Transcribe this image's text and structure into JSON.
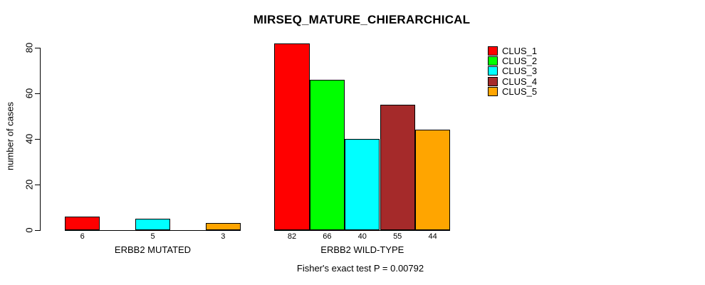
{
  "title": "MIRSEQ_MATURE_CHIERARCHICAL",
  "chart_data": {
    "type": "bar",
    "title": "MIRSEQ_MATURE_CHIERARCHICAL",
    "xlabel": "",
    "ylabel": "number of cases",
    "ylim": [
      0,
      80
    ],
    "yticks": [
      0,
      20,
      40,
      60,
      80
    ],
    "grid": false,
    "legend_position": "top-right",
    "legend": [
      {
        "label": "CLUS_1",
        "color": "#FF0000"
      },
      {
        "label": "CLUS_2",
        "color": "#00FF00"
      },
      {
        "label": "CLUS_3",
        "color": "#00FFFF"
      },
      {
        "label": "CLUS_4",
        "color": "#A52A2A"
      },
      {
        "label": "CLUS_5",
        "color": "#FFA500"
      }
    ],
    "categories": [
      "ERBB2 MUTATED",
      "ERBB2 WILD-TYPE"
    ],
    "groups": [
      {
        "label": "ERBB2 MUTATED",
        "values": [
          6,
          0,
          5,
          0,
          3
        ],
        "bar_labels": [
          "6",
          "",
          "5",
          "",
          "3"
        ]
      },
      {
        "label": "ERBB2 WILD-TYPE",
        "values": [
          82,
          66,
          40,
          55,
          44
        ],
        "bar_labels": [
          "82",
          "66",
          "40",
          "55",
          "44"
        ]
      }
    ],
    "annotation": "Fisher's exact test P = 0.00792"
  }
}
